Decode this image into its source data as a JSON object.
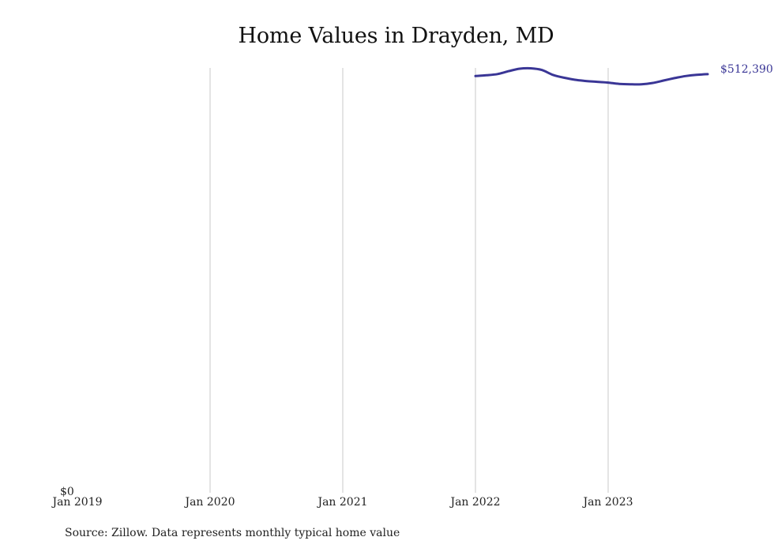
{
  "chart_data": {
    "type": "line",
    "title": "Home Values in Drayden, MD",
    "xlabel": "",
    "ylabel": "",
    "x_ticks": [
      "Jan 2019",
      "Jan 2020",
      "Jan 2021",
      "Jan 2022",
      "Jan 2023"
    ],
    "y_ticks": [
      "$0"
    ],
    "xlim": [
      "2019-01",
      "2023-12"
    ],
    "ylim": [
      0,
      520000
    ],
    "grid": "vertical",
    "series": [
      {
        "color": "#3a3696",
        "end_label": "$512,390",
        "points": [
          {
            "x": "2022-01",
            "y": 510000
          },
          {
            "x": "2022-02",
            "y": 511000
          },
          {
            "x": "2022-03",
            "y": 512500
          },
          {
            "x": "2022-04",
            "y": 516000
          },
          {
            "x": "2022-05",
            "y": 519000
          },
          {
            "x": "2022-06",
            "y": 519500
          },
          {
            "x": "2022-07",
            "y": 517500
          },
          {
            "x": "2022-08",
            "y": 511500
          },
          {
            "x": "2022-09",
            "y": 508000
          },
          {
            "x": "2022-10",
            "y": 505500
          },
          {
            "x": "2022-11",
            "y": 504000
          },
          {
            "x": "2022-12",
            "y": 503000
          },
          {
            "x": "2023-01",
            "y": 502000
          },
          {
            "x": "2023-02",
            "y": 500500
          },
          {
            "x": "2023-03",
            "y": 500000
          },
          {
            "x": "2023-04",
            "y": 500000
          },
          {
            "x": "2023-05",
            "y": 501500
          },
          {
            "x": "2023-06",
            "y": 504500
          },
          {
            "x": "2023-07",
            "y": 507500
          },
          {
            "x": "2023-08",
            "y": 510000
          },
          {
            "x": "2023-09",
            "y": 511500
          },
          {
            "x": "2023-10",
            "y": 512390
          }
        ]
      }
    ]
  },
  "source_note": "Source: Zillow. Data represents monthly typical home value"
}
